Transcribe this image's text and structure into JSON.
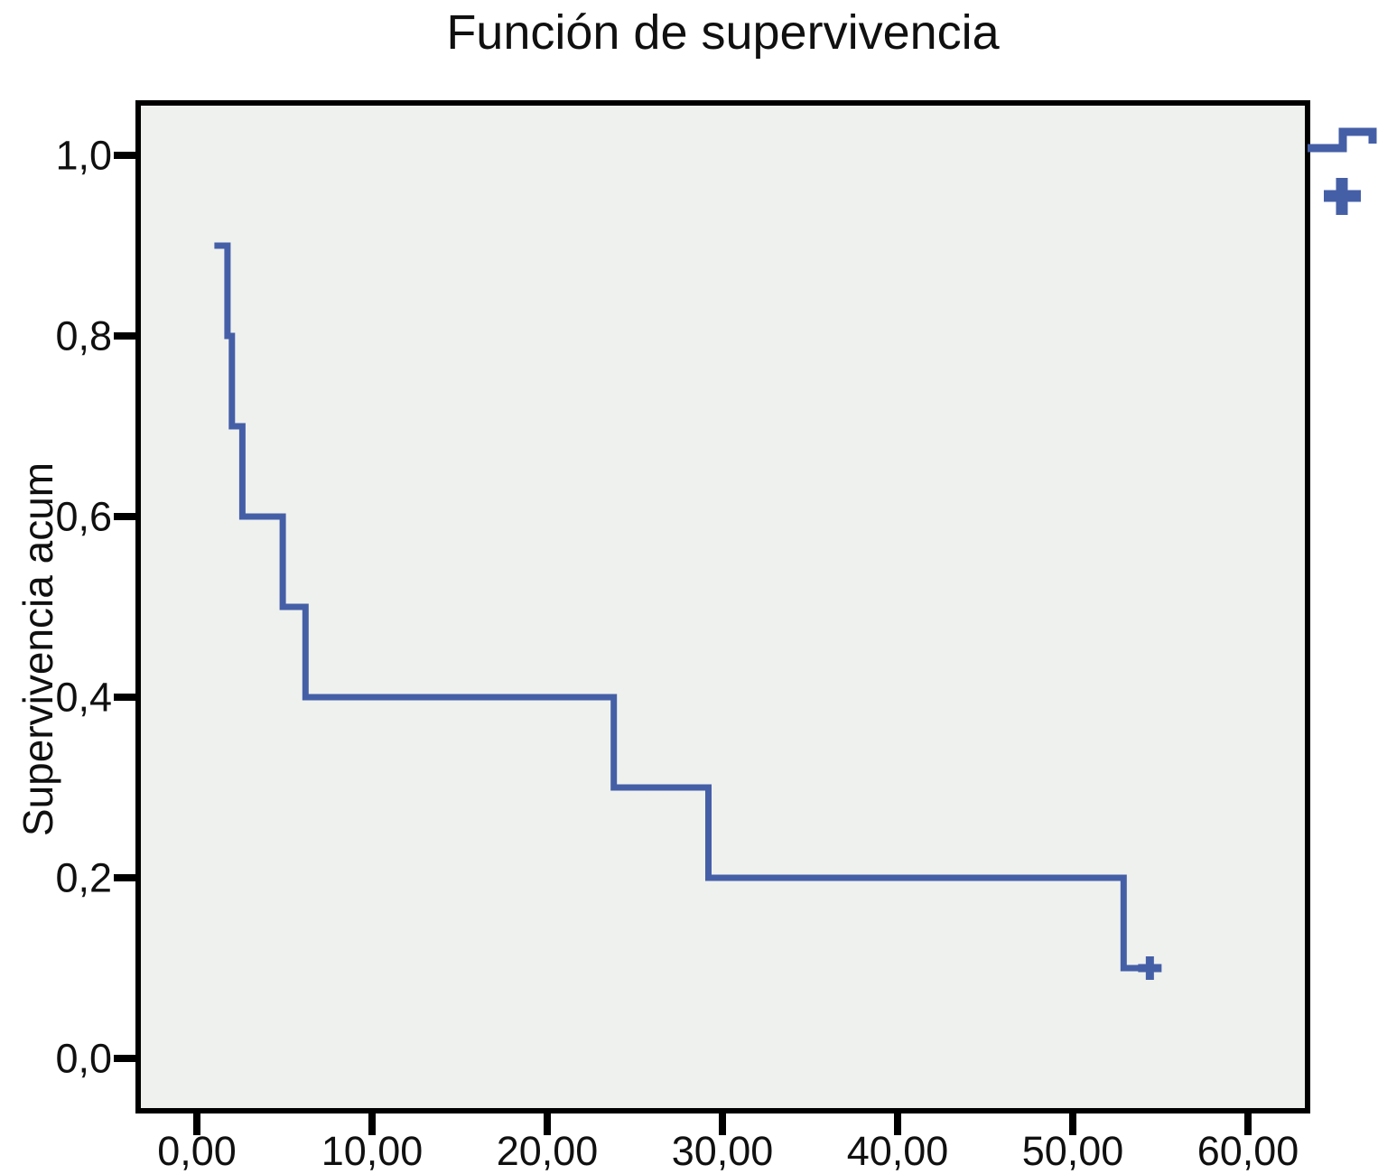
{
  "title": "Función de supervivencia",
  "y_axis": {
    "label": "Supervivencia acum",
    "tick_labels": [
      "0,0",
      "0,2",
      "0,4",
      "0,6",
      "0,8",
      "1,0"
    ],
    "tick_values": [
      0.0,
      0.2,
      0.4,
      0.6,
      0.8,
      1.0
    ]
  },
  "x_axis": {
    "tick_labels": [
      "0,00",
      "10,00",
      "20,00",
      "30,00",
      "40,00",
      "50,00",
      "60,00"
    ],
    "tick_values": [
      0,
      10,
      20,
      30,
      40,
      50,
      60
    ]
  },
  "colors": {
    "curve": "#455FA7",
    "plot_background": "#EFF1EF",
    "frame": "#000000",
    "text": "#101010",
    "page_background": "#FFFFFF"
  },
  "chart_data": {
    "type": "line",
    "subtype": "kaplan_meier_step",
    "title": "Función de supervivencia",
    "xlabel": "",
    "ylabel": "Supervivencia acum",
    "xlim": [
      -3.4,
      63.4
    ],
    "ylim": [
      -0.058,
      1.058
    ],
    "grid": false,
    "legend_position": "right-cropped",
    "series": [
      {
        "name": "Función de supervivencia",
        "step_points": [
          [
            1.0,
            0.9
          ],
          [
            1.75,
            0.9
          ],
          [
            1.75,
            0.8
          ],
          [
            2.0,
            0.8
          ],
          [
            2.0,
            0.7
          ],
          [
            2.6,
            0.7
          ],
          [
            2.6,
            0.6
          ],
          [
            4.9,
            0.6
          ],
          [
            4.9,
            0.5
          ],
          [
            6.2,
            0.5
          ],
          [
            6.2,
            0.4
          ],
          [
            23.8,
            0.4
          ],
          [
            23.8,
            0.3
          ],
          [
            29.2,
            0.3
          ],
          [
            29.2,
            0.2
          ],
          [
            52.9,
            0.2
          ],
          [
            52.9,
            0.1
          ],
          [
            55.0,
            0.1
          ]
        ]
      }
    ],
    "censored_points": [
      [
        54.4,
        0.1
      ]
    ],
    "event_times": [
      1.75,
      2.0,
      2.6,
      4.9,
      6.2,
      23.8,
      29.2,
      52.9
    ],
    "survival_levels_after_events": [
      0.8,
      0.7,
      0.6,
      0.5,
      0.4,
      0.3,
      0.2,
      0.1
    ]
  },
  "legend": {
    "note": "legend icons cropped at right image edge, labels not visible",
    "items": [
      {
        "glyph": "step-line"
      },
      {
        "glyph": "plus"
      }
    ]
  }
}
